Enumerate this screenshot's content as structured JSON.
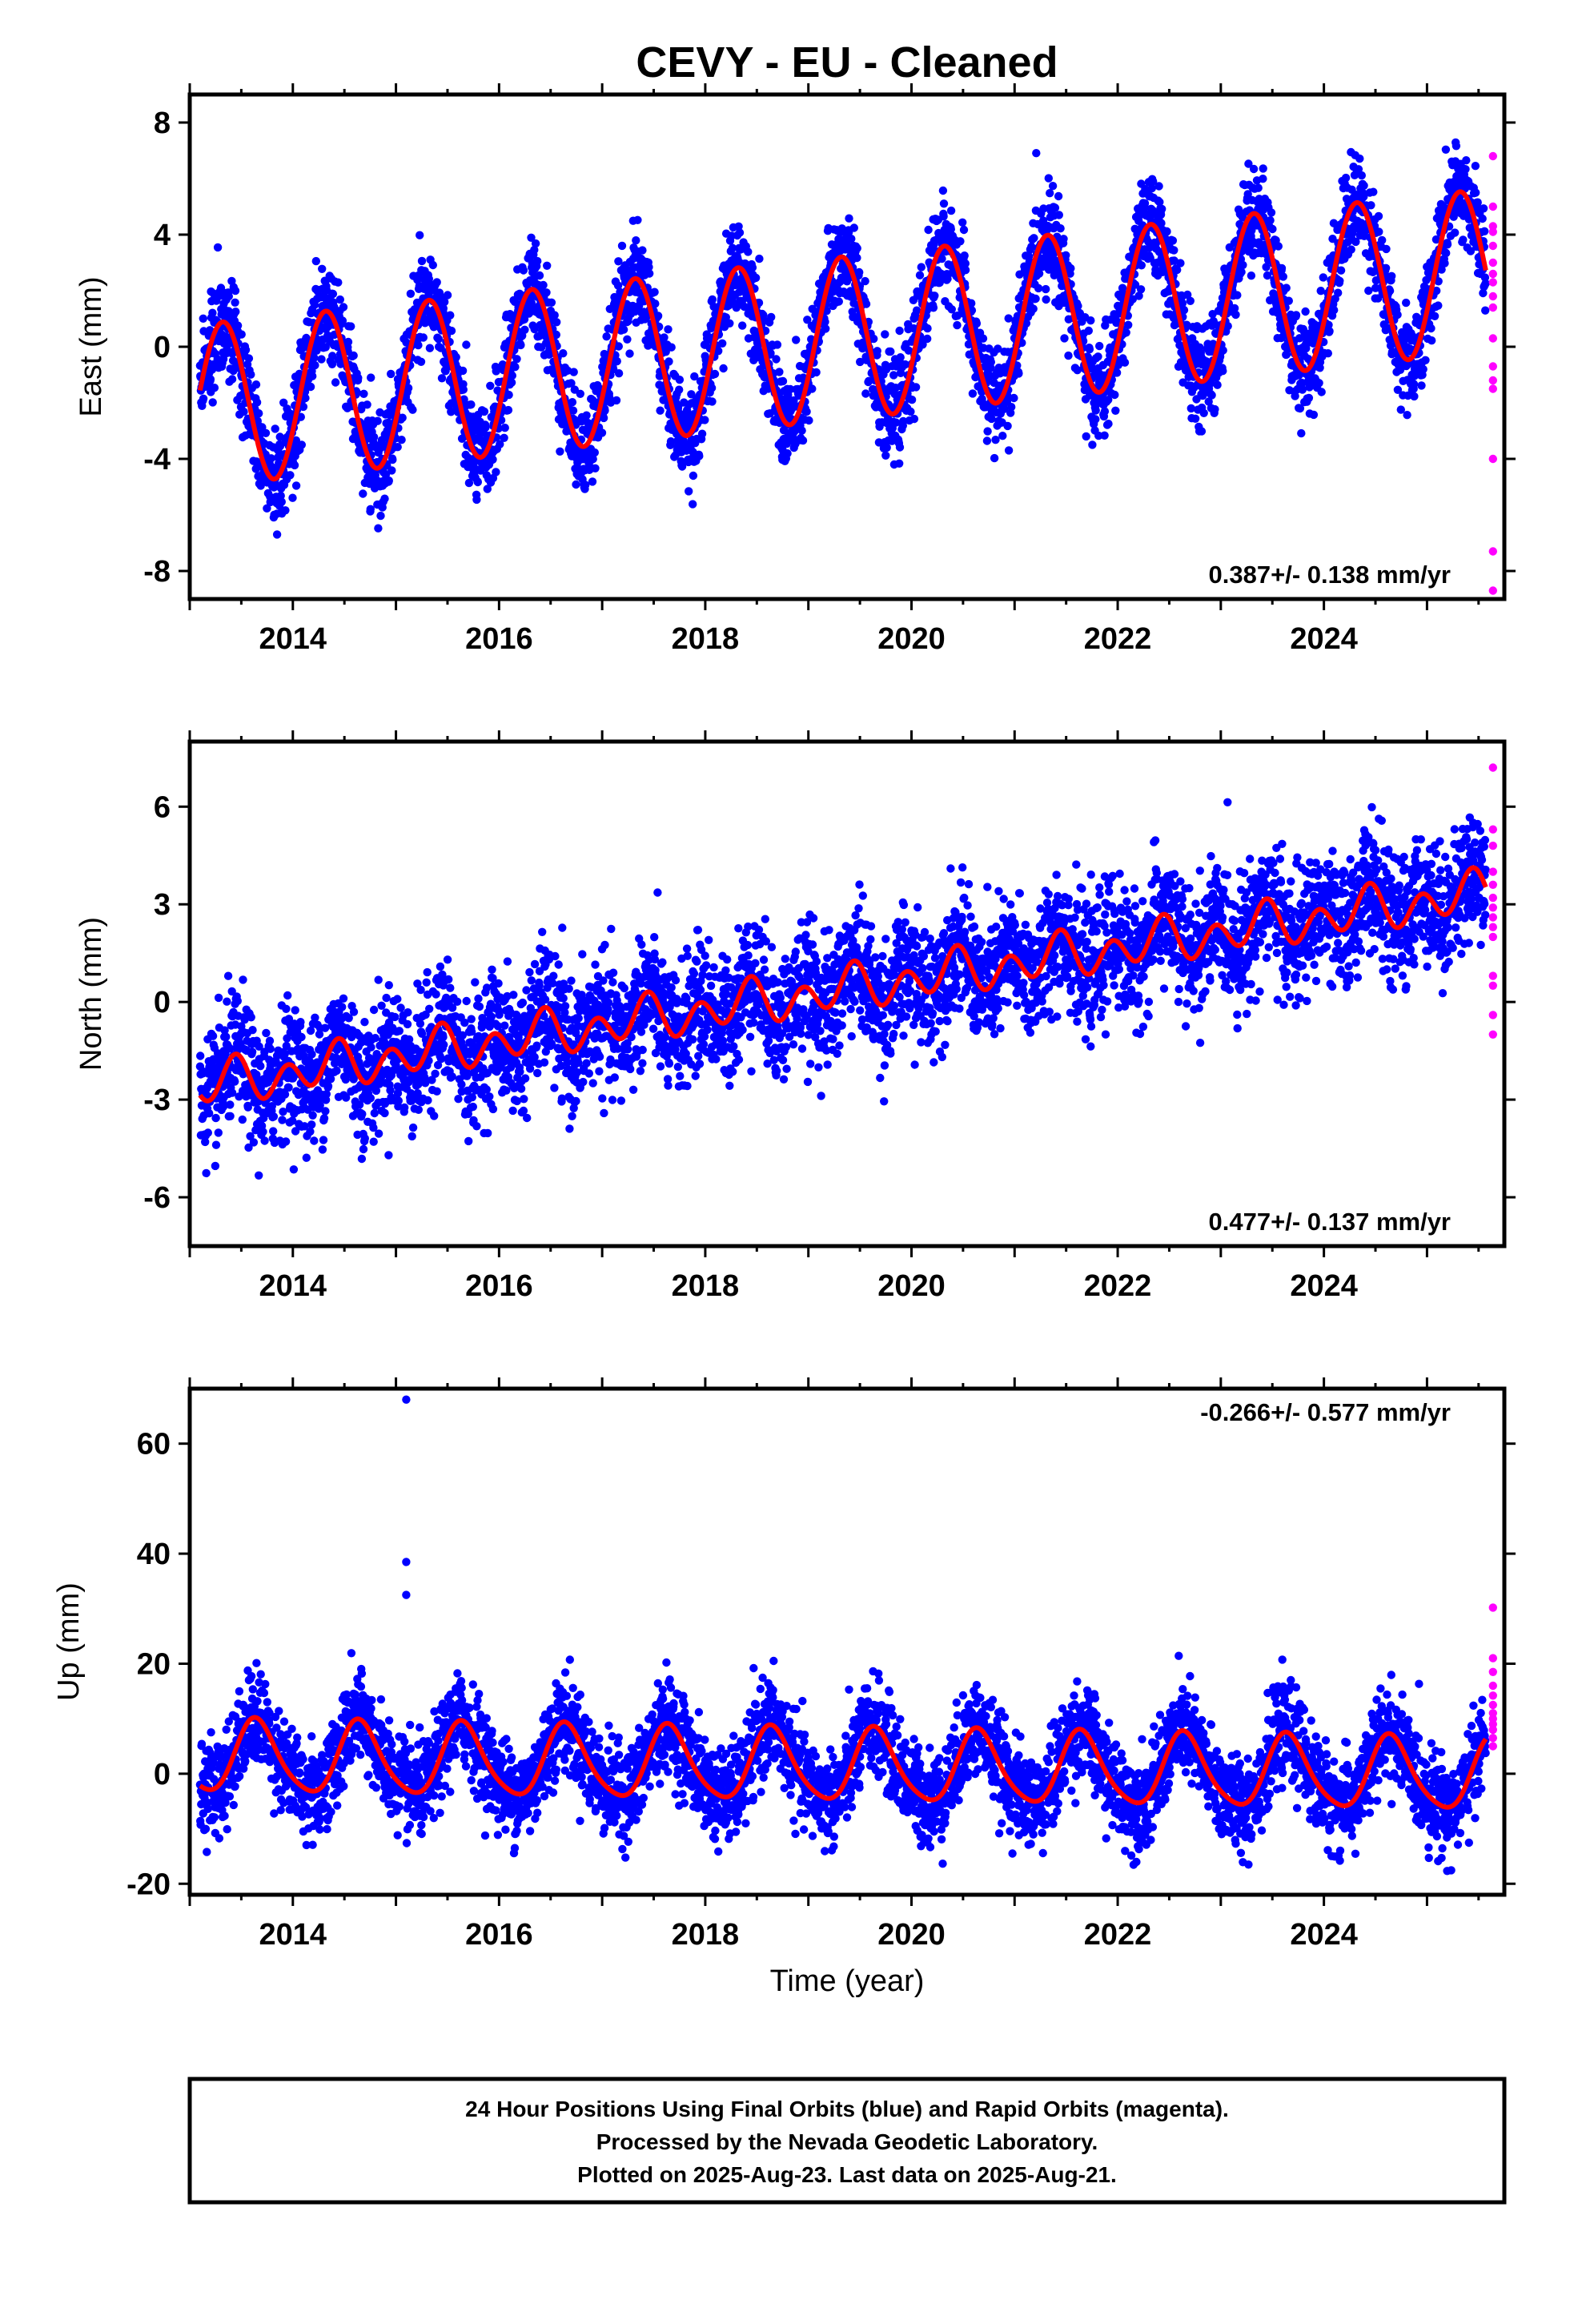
{
  "chart_data": {
    "title": "CEVY  - EU - Cleaned",
    "xlabel": "Time (year)",
    "x_tick_labels": [
      "2014",
      "2016",
      "2018",
      "2020",
      "2022",
      "2024"
    ],
    "xlim": [
      2013.0,
      2025.75
    ],
    "colors": {
      "final": "#0000ff",
      "rapid": "#ff00ff",
      "model": "#ff0000"
    },
    "panels": [
      {
        "name": "east",
        "type": "scatter",
        "ylabel": "East (mm)",
        "ylim": [
          -9,
          9
        ],
        "y_ticks": [
          8,
          4,
          0,
          -4,
          -8
        ],
        "y_tick_labels": [
          "8",
          "4",
          "0",
          "-4",
          "-8"
        ],
        "rate_text": "0.387+/- 0.138 mm/yr",
        "rate_position": "bottom-right",
        "model": {
          "t0": 2013.1,
          "t1": 2025.57,
          "offset": -2.1,
          "trend": 0.387,
          "annual_amp": 2.9,
          "annual_peak": 2013.32,
          "semi_amp": 0.0,
          "semi_peak": 2013.0
        },
        "scatter_sigma": 0.85,
        "rapid_values": [
          6.8,
          5.0,
          4.3,
          4.1,
          3.6,
          3.0,
          2.6,
          2.3,
          1.8,
          1.4,
          0.3,
          -0.7,
          -1.2,
          -1.5,
          -4.0,
          -7.3,
          -8.7
        ]
      },
      {
        "name": "north",
        "type": "scatter",
        "ylabel": "North (mm)",
        "ylim": [
          -7.5,
          8
        ],
        "y_ticks": [
          6,
          3,
          0,
          -3,
          -6
        ],
        "y_tick_labels": [
          "6",
          "3",
          "0",
          "-3",
          "-6"
        ],
        "rate_text": "0.477+/- 0.137 mm/yr",
        "rate_position": "bottom-right",
        "model": {
          "t0": 2013.1,
          "t1": 2025.57,
          "offset": -2.6,
          "trend": 0.477,
          "annual_amp": 0.3,
          "annual_peak": 2013.4,
          "semi_amp": 0.55,
          "semi_peak": 2013.45
        },
        "scatter_sigma": 0.95,
        "rapid_values": [
          7.2,
          5.3,
          4.8,
          4.0,
          3.6,
          3.2,
          2.9,
          2.6,
          2.3,
          2.0,
          0.8,
          0.5,
          -0.4,
          -1.0
        ]
      },
      {
        "name": "up",
        "type": "scatter",
        "ylabel": "Up (mm)",
        "ylim": [
          -22,
          70
        ],
        "y_ticks": [
          60,
          40,
          20,
          0,
          -20
        ],
        "y_tick_labels": [
          "60",
          "40",
          "20",
          "0",
          "-20"
        ],
        "rate_text": "-0.266+/- 0.577 mm/yr",
        "rate_position": "top-right",
        "model": {
          "t0": 2013.1,
          "t1": 2025.57,
          "offset": 3.0,
          "trend": -0.266,
          "annual_amp": 6.5,
          "annual_peak": 2013.65,
          "semi_amp": 1.0,
          "semi_peak": 2013.6
        },
        "scatter_sigma": 4.2,
        "outliers": [
          [
            2015.1,
            68.0
          ],
          [
            2015.1,
            38.5
          ],
          [
            2015.1,
            32.5
          ]
        ],
        "rapid_values": [
          30.2,
          21.0,
          18.5,
          16.0,
          14.2,
          12.5,
          11.0,
          10.0,
          9.0,
          8.0,
          6.5,
          5.0
        ]
      }
    ]
  },
  "footer": {
    "line1": "24 Hour Positions Using Final Orbits (blue) and Rapid Orbits (magenta).",
    "line2": "Processed by the Nevada Geodetic Laboratory.",
    "line3": "Plotted on 2025-Aug-23. Last data on 2025-Aug-21."
  }
}
